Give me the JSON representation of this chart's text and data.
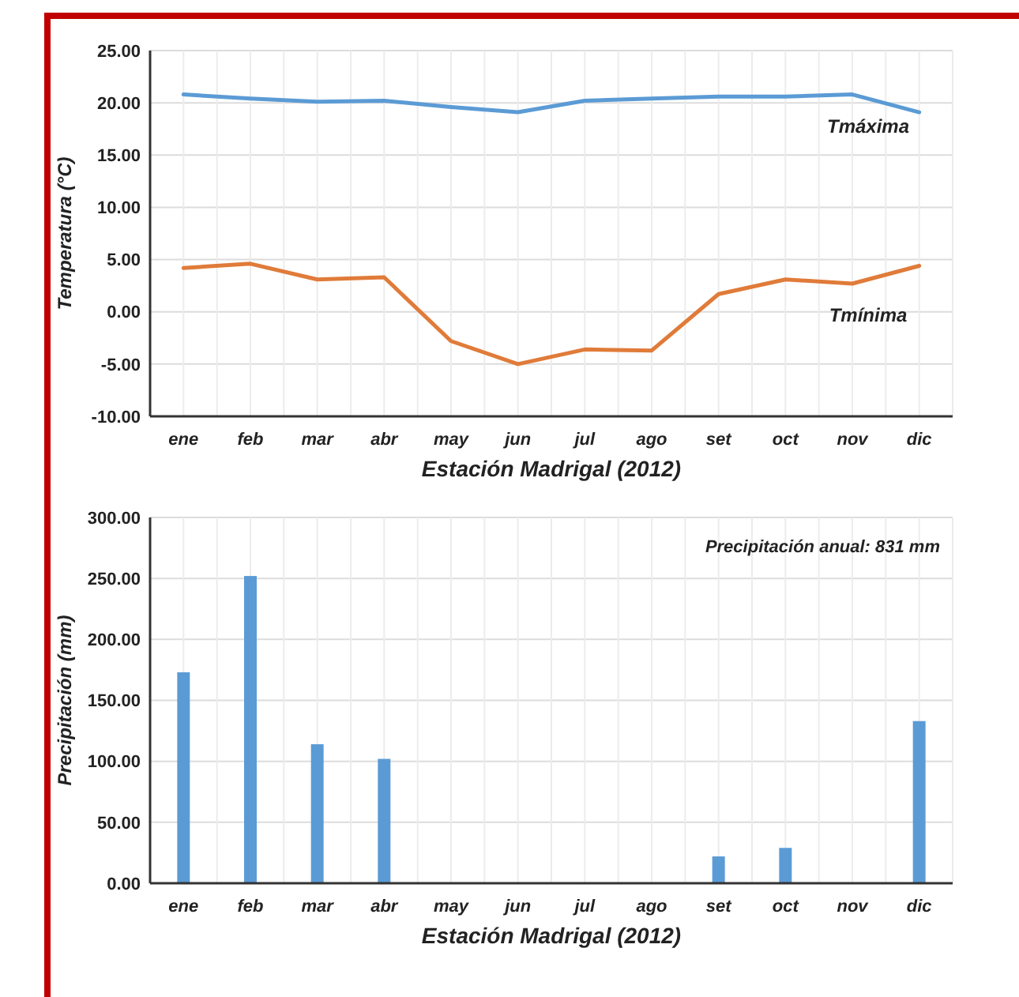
{
  "chart_data": [
    {
      "type": "line",
      "xlabel": "Estación Madrigal (2012)",
      "ylabel": "Temperatura (°C)",
      "categories": [
        "ene",
        "feb",
        "mar",
        "abr",
        "may",
        "jun",
        "jul",
        "ago",
        "set",
        "oct",
        "nov",
        "dic"
      ],
      "series": [
        {
          "name": "Tmáxima",
          "color": "#5b9bd5",
          "values": [
            20.8,
            20.4,
            20.1,
            20.2,
            19.6,
            19.1,
            20.2,
            20.4,
            20.6,
            20.6,
            20.8,
            19.1
          ]
        },
        {
          "name": "Tmínima",
          "color": "#e07b39",
          "values": [
            4.2,
            4.6,
            3.1,
            3.3,
            -2.8,
            -5.0,
            -3.6,
            -3.7,
            1.7,
            3.1,
            2.7,
            4.4
          ]
        }
      ],
      "ylim": [
        -10,
        25
      ],
      "yticks": [
        {
          "value": -10,
          "label": "-10.00"
        },
        {
          "value": -5,
          "label": "-5.00"
        },
        {
          "value": 0,
          "label": "0.00"
        },
        {
          "value": 5,
          "label": "5.00"
        },
        {
          "value": 10,
          "label": "10.00"
        },
        {
          "value": 15,
          "label": "15.00"
        },
        {
          "value": 20,
          "label": "20.00"
        },
        {
          "value": 25,
          "label": "25.00"
        }
      ],
      "grid": true,
      "marker": "none",
      "line_style": "solid"
    },
    {
      "type": "bar",
      "xlabel": "Estación Madrigal (2012)",
      "ylabel": "Precipitación (mm)",
      "categories": [
        "ene",
        "feb",
        "mar",
        "abr",
        "may",
        "jun",
        "jul",
        "ago",
        "set",
        "oct",
        "nov",
        "dic"
      ],
      "values": [
        173,
        252,
        114,
        102,
        0,
        0,
        0,
        0,
        22,
        29,
        0,
        133
      ],
      "color": "#5b9bd5",
      "ylim": [
        0,
        300
      ],
      "yticks": [
        {
          "value": 0,
          "label": "0.00"
        },
        {
          "value": 50,
          "label": "50.00"
        },
        {
          "value": 100,
          "label": "100.00"
        },
        {
          "value": 150,
          "label": "150.00"
        },
        {
          "value": 200,
          "label": "200.00"
        },
        {
          "value": 250,
          "label": "250.00"
        },
        {
          "value": 300,
          "label": "300.00"
        }
      ],
      "annotations": [
        "Precipitación anual: 831 mm"
      ],
      "grid": true
    }
  ]
}
